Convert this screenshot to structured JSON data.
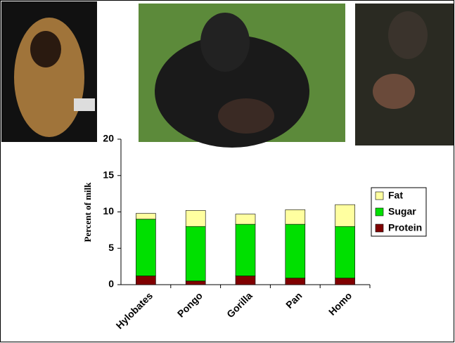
{
  "chart_data": {
    "type": "stacked_bar",
    "y_label": "Percent of milk",
    "categories": [
      "Hylobates",
      "Pongo",
      "Gorilla",
      "Pan",
      "Homo"
    ],
    "series": [
      {
        "name": "Protein",
        "color": "#800000",
        "values": [
          1.2,
          0.5,
          1.2,
          0.9,
          0.9
        ]
      },
      {
        "name": "Sugar",
        "color": "#00e000",
        "values": [
          7.8,
          7.5,
          7.1,
          7.4,
          7.1
        ]
      },
      {
        "name": "Fat",
        "color": "#ffffa0",
        "values": [
          0.8,
          2.2,
          1.4,
          2.0,
          3.0
        ]
      }
    ],
    "ylim": [
      0,
      20
    ],
    "yticks": [
      0,
      5,
      10,
      15,
      20
    ],
    "legend": "right"
  }
}
